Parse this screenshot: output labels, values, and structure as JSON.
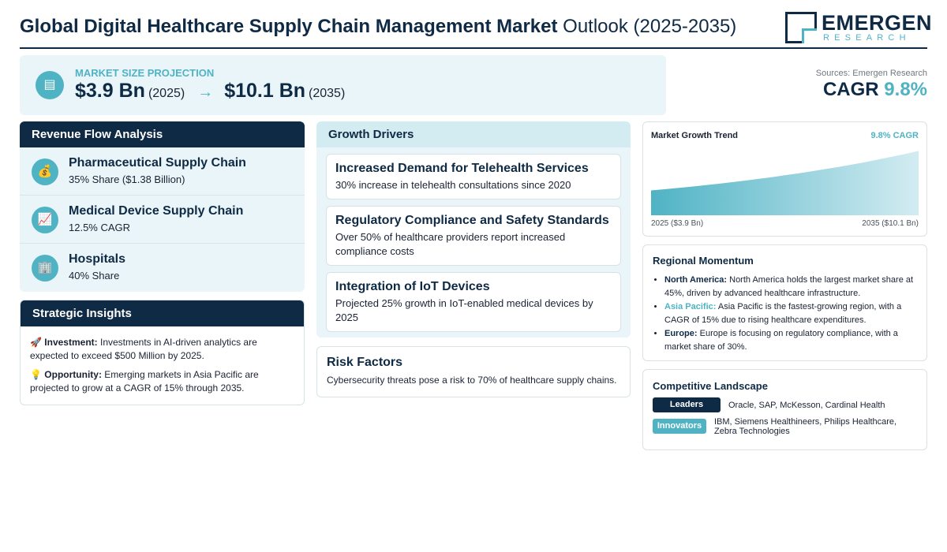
{
  "header": {
    "title_bold": "Global Digital Healthcare Supply Chain Management Market",
    "title_rest": " Outlook (2025-2035)",
    "logo_top": "EMERGEN",
    "logo_bottom": "RESEARCH"
  },
  "projection": {
    "icon": "chart-icon",
    "label": "MARKET SIZE PROJECTION",
    "start_value": "$3.9 Bn",
    "start_year": "(2025)",
    "arrow": "→",
    "end_value": "$10.1 Bn",
    "end_year": "(2035)"
  },
  "summary": {
    "sources": "Sources: Emergen Research",
    "cagr_label": "CAGR",
    "cagr_value": "9.8%"
  },
  "revenue": {
    "title": "Revenue Flow Analysis",
    "items": [
      {
        "icon": "money-bag-icon",
        "title": "Pharmaceutical Supply Chain",
        "sub": "35% Share ($1.38 Billion)"
      },
      {
        "icon": "trend-chart-icon",
        "title": "Medical Device Supply Chain",
        "sub": "12.5% CAGR"
      },
      {
        "icon": "hospital-icon",
        "title": "Hospitals",
        "sub": "40% Share"
      }
    ]
  },
  "insights": {
    "title": "Strategic Insights",
    "items": [
      {
        "icon": "rocket-icon",
        "label": "Investment:",
        "text": " Investments in AI-driven analytics are expected to exceed $500 Million by 2025."
      },
      {
        "icon": "lightbulb-icon",
        "label": "Opportunity:",
        "text": " Emerging markets in Asia Pacific are projected to grow at a CAGR of 15% through 2035."
      }
    ]
  },
  "drivers": {
    "title": "Growth Drivers",
    "items": [
      {
        "title": "Increased Demand for Telehealth Services",
        "desc": "30% increase in telehealth consultations since 2020"
      },
      {
        "title": "Regulatory Compliance and Safety Standards",
        "desc": "Over 50% of healthcare providers report increased compliance costs"
      },
      {
        "title": "Integration of IoT Devices",
        "desc": "Projected 25% growth in IoT-enabled medical devices by 2025"
      }
    ]
  },
  "risk": {
    "title": "Risk Factors",
    "desc": "Cybersecurity threats pose a risk to 70% of healthcare supply chains."
  },
  "trend": {
    "title": "Market Growth Trend",
    "cagr": "9.8% CAGR",
    "left_label": "2025 ($3.9 Bn)",
    "right_label": "2035 ($10.1 Bn)"
  },
  "chart_data": {
    "type": "area",
    "x": [
      "2025",
      "2035"
    ],
    "series": [
      {
        "values": [
          3.9,
          10.1
        ]
      }
    ],
    "title": "Market Growth Trend",
    "annotations": [
      "9.8% CAGR"
    ],
    "x_tick_labels": [
      "2025 ($3.9 Bn)",
      "2035 ($10.1 Bn)"
    ],
    "grid": false
  },
  "regional": {
    "title": "Regional Momentum",
    "items": [
      {
        "region": "North America:",
        "text": " North America holds the largest market share at 45%, driven by advanced healthcare infrastructure.",
        "accent": false
      },
      {
        "region": "Asia Pacific:",
        "text": " Asia Pacific is the fastest-growing region, with a CAGR of 15% due to rising healthcare expenditures.",
        "accent": true
      },
      {
        "region": "Europe:",
        "text": " Europe is focusing on regulatory compliance, with a market share of 30%.",
        "accent": false
      }
    ]
  },
  "competitive": {
    "title": "Competitive Landscape",
    "leaders_label": "Leaders",
    "leaders": "Oracle, SAP, McKesson, Cardinal Health",
    "innovators_label": "Innovators",
    "innovators": "IBM, Siemens Healthineers, Philips Healthcare, Zebra Technologies"
  },
  "colors": {
    "navy": "#0f2a44",
    "teal": "#4fb3c4",
    "light_bg": "#e9f5f8"
  }
}
